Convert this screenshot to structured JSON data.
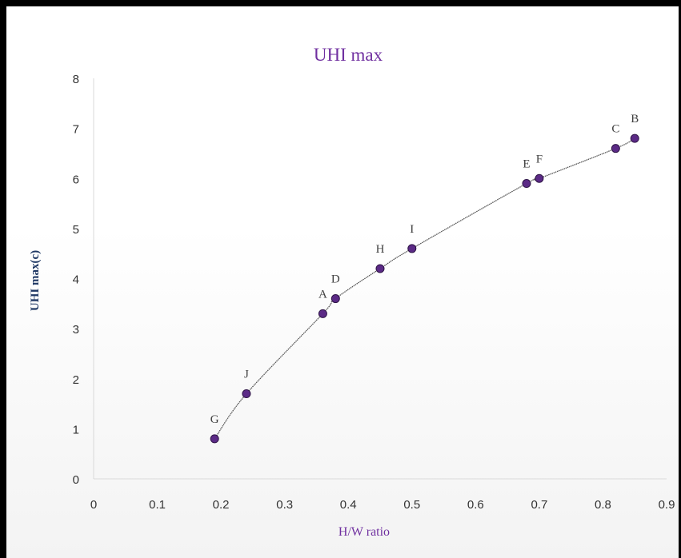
{
  "chart_data": {
    "type": "scatter",
    "title": "UHI max",
    "xlabel": "H/W ratio",
    "ylabel": "UHI max(c)",
    "xlim": [
      0,
      0.9
    ],
    "ylim": [
      0,
      8
    ],
    "x_ticks": [
      "0",
      "0.1",
      "0.2",
      "0.3",
      "0.4",
      "0.5",
      "0.6",
      "0.7",
      "0.8",
      "0.9"
    ],
    "y_ticks": [
      "0",
      "1",
      "2",
      "3",
      "4",
      "5",
      "6",
      "7",
      "8"
    ],
    "grid": false,
    "legend": "none",
    "marker_color": "#5b2a86",
    "line_color": "#555555",
    "points": [
      {
        "label": "G",
        "x": 0.19,
        "y": 0.8
      },
      {
        "label": "J",
        "x": 0.24,
        "y": 1.7
      },
      {
        "label": "A",
        "x": 0.36,
        "y": 3.3
      },
      {
        "label": "D",
        "x": 0.38,
        "y": 3.6
      },
      {
        "label": "H",
        "x": 0.45,
        "y": 4.2
      },
      {
        "label": "I",
        "x": 0.5,
        "y": 4.6
      },
      {
        "label": "E",
        "x": 0.68,
        "y": 5.9
      },
      {
        "label": "F",
        "x": 0.7,
        "y": 6.0
      },
      {
        "label": "C",
        "x": 0.82,
        "y": 6.6
      },
      {
        "label": "B",
        "x": 0.85,
        "y": 6.8
      }
    ]
  }
}
